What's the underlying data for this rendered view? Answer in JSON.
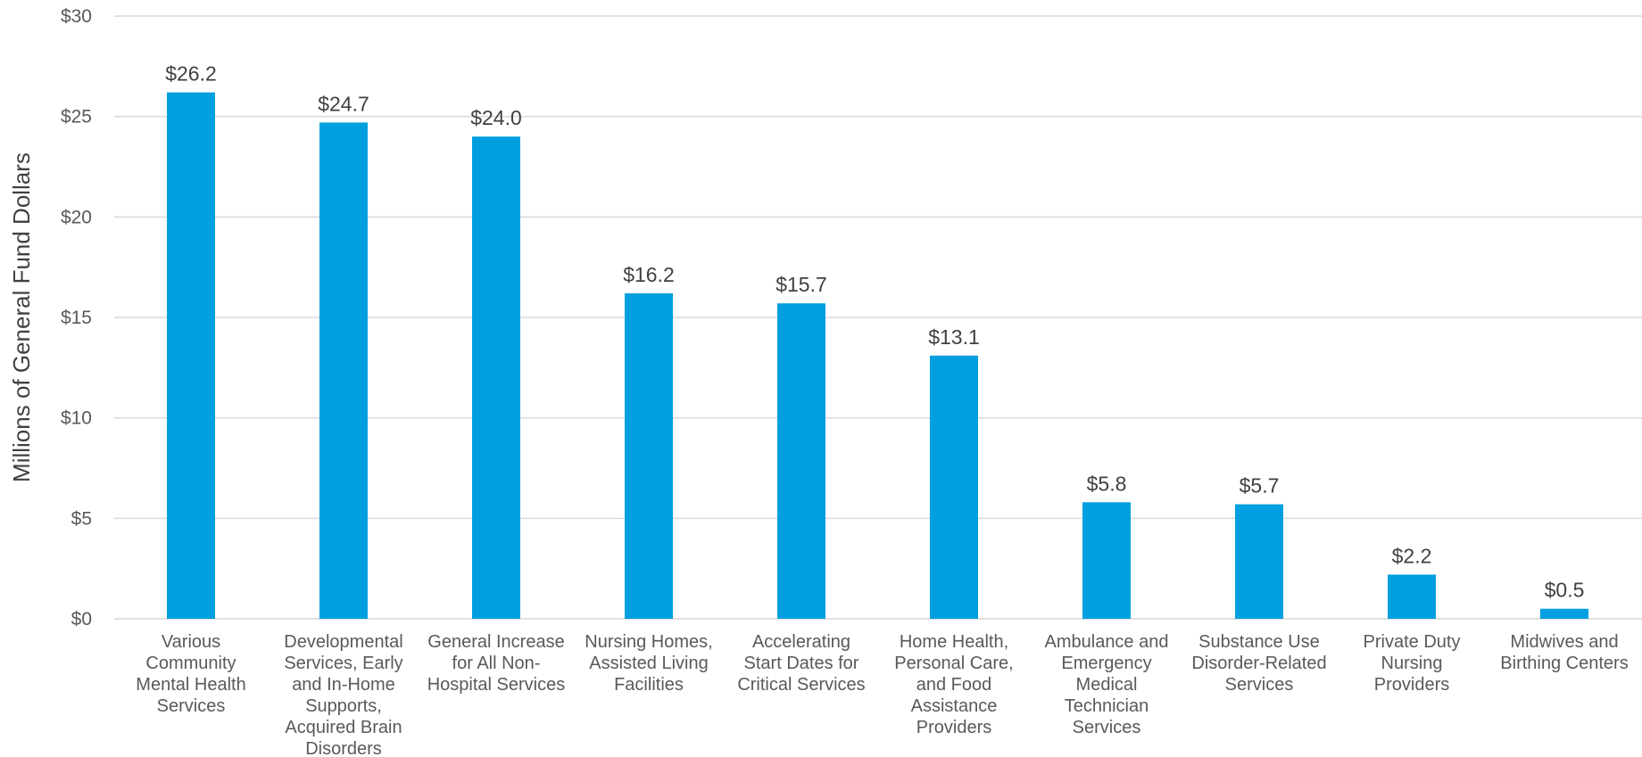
{
  "chart_data": {
    "type": "bar",
    "title": "",
    "xlabel": "",
    "ylabel": "Millions of General Fund Dollars",
    "ylim": [
      0,
      30
    ],
    "yticks": [
      0,
      5,
      10,
      15,
      20,
      25,
      30
    ],
    "ytick_labels": [
      "$0",
      "$5",
      "$10",
      "$15",
      "$20",
      "$25",
      "$30"
    ],
    "grid": true,
    "bar_color": "#009FDF",
    "categories": [
      [
        "Various",
        "Community",
        "Mental Health",
        "Services"
      ],
      [
        "Developmental",
        "Services, Early",
        "and In-Home",
        "Supports,",
        "Acquired Brain",
        "Disorders"
      ],
      [
        "General Increase",
        "for All Non-",
        "Hospital Services"
      ],
      [
        "Nursing Homes,",
        "Assisted Living",
        "Facilities"
      ],
      [
        "Accelerating",
        "Start Dates for",
        "Critical Services"
      ],
      [
        "Home Health,",
        "Personal Care,",
        "and Food",
        "Assistance",
        "Providers"
      ],
      [
        "Ambulance and",
        "Emergency",
        "Medical",
        "Technician",
        "Services"
      ],
      [
        "Substance Use",
        "Disorder-Related",
        "Services"
      ],
      [
        "Private Duty",
        "Nursing",
        "Providers"
      ],
      [
        "Midwives and",
        "Birthing Centers"
      ]
    ],
    "values": [
      26.2,
      24.7,
      24.0,
      16.2,
      15.7,
      13.1,
      5.8,
      5.7,
      2.2,
      0.5
    ],
    "data_labels": [
      "$26.2",
      "$24.7",
      "$24.0",
      "$16.2",
      "$15.7",
      "$13.1",
      "$5.8",
      "$5.7",
      "$2.2",
      "$0.5"
    ]
  }
}
